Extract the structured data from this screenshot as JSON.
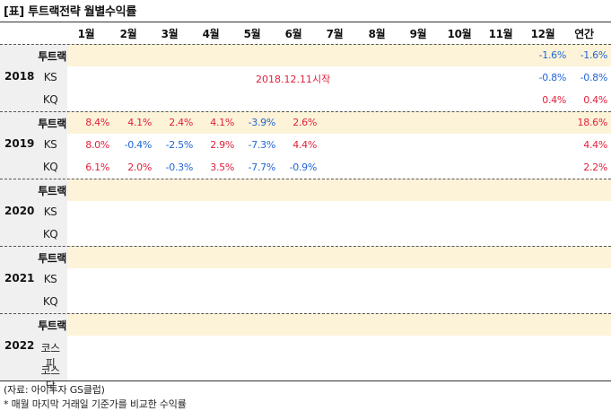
{
  "title": "[표] 투트랙전략 월별수익률",
  "columns": [
    "1월",
    "2월",
    "3월",
    "4월",
    "5월",
    "6월",
    "7월",
    "8월",
    "9월",
    "10월",
    "11월",
    "12월",
    "연간"
  ],
  "start_note": "2018.12.11시작",
  "groups": [
    {
      "year": "2018",
      "rows": [
        {
          "label": "투트랙",
          "bold": true,
          "values": [
            "",
            "",
            "",
            "",
            "",
            "",
            "",
            "",
            "",
            "",
            "",
            "-1.6%",
            "-1.6%"
          ]
        },
        {
          "label": "KS",
          "bold": false,
          "values": [
            "",
            "",
            "",
            "",
            "",
            "",
            "",
            "",
            "",
            "",
            "",
            "-0.8%",
            "-0.8%"
          ]
        },
        {
          "label": "KQ",
          "bold": false,
          "values": [
            "",
            "",
            "",
            "",
            "",
            "",
            "",
            "",
            "",
            "",
            "",
            "0.4%",
            "0.4%"
          ]
        }
      ]
    },
    {
      "year": "2019",
      "rows": [
        {
          "label": "투트랙",
          "bold": true,
          "values": [
            "8.4%",
            "4.1%",
            "2.4%",
            "4.1%",
            "-3.9%",
            "2.6%",
            "",
            "",
            "",
            "",
            "",
            "",
            "18.6%"
          ]
        },
        {
          "label": "KS",
          "bold": false,
          "values": [
            "8.0%",
            "-0.4%",
            "-2.5%",
            "2.9%",
            "-7.3%",
            "4.4%",
            "",
            "",
            "",
            "",
            "",
            "",
            "4.4%"
          ]
        },
        {
          "label": "KQ",
          "bold": false,
          "values": [
            "6.1%",
            "2.0%",
            "-0.3%",
            "3.5%",
            "-7.7%",
            "-0.9%",
            "",
            "",
            "",
            "",
            "",
            "",
            "2.2%"
          ]
        }
      ]
    },
    {
      "year": "2020",
      "rows": [
        {
          "label": "투트랙",
          "bold": true,
          "values": []
        },
        {
          "label": "KS",
          "bold": false,
          "values": []
        },
        {
          "label": "KQ",
          "bold": false,
          "values": []
        }
      ]
    },
    {
      "year": "2021",
      "rows": [
        {
          "label": "투트랙",
          "bold": true,
          "values": []
        },
        {
          "label": "KS",
          "bold": false,
          "values": []
        },
        {
          "label": "KQ",
          "bold": false,
          "values": []
        }
      ]
    },
    {
      "year": "2022",
      "rows": [
        {
          "label": "투트랙",
          "bold": true,
          "values": []
        },
        {
          "label": "코스피",
          "bold": false,
          "values": []
        },
        {
          "label": "코스닥",
          "bold": false,
          "values": []
        }
      ]
    }
  ],
  "footer": {
    "source": "(자료: 아이투자 GS클럽)",
    "note": "* 매월 마지막 거래일 기준가를 비교한 수익률"
  },
  "colors": {
    "positive": "#e0213c",
    "negative": "#2166d6",
    "highlight": "#fdf3d8",
    "label_bg": "#f0f0f0"
  }
}
